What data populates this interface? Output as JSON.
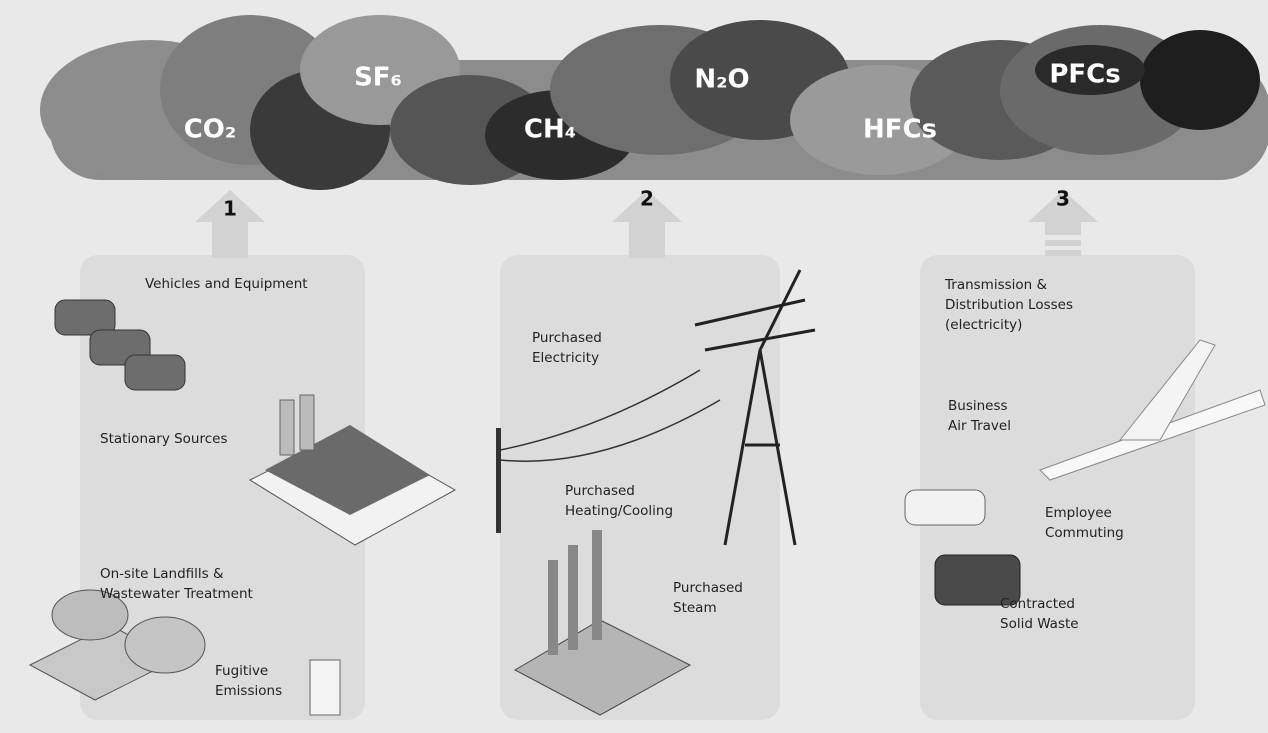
{
  "gases": [
    "CO₂",
    "SF₆",
    "CH₄",
    "N₂O",
    "HFCs",
    "PFCs"
  ],
  "scopes": [
    {
      "number": "1",
      "labels": [
        [
          "Vehicles and Equipment"
        ],
        [
          "Stationary Sources"
        ],
        [
          "On-site Landfills &",
          "Wastewater Treatment"
        ],
        [
          "Fugitive",
          "Emissions"
        ]
      ]
    },
    {
      "number": "2",
      "labels": [
        [
          "Purchased",
          "Electricity"
        ],
        [
          "Purchased",
          "Heating/Cooling"
        ],
        [
          "Purchased",
          "Steam"
        ]
      ]
    },
    {
      "number": "3",
      "labels": [
        [
          "Transmission &",
          "Distribution Losses",
          "(electricity)"
        ],
        [
          "Business",
          "Air Travel"
        ],
        [
          "Employee",
          "Commuting"
        ],
        [
          "Contracted",
          "Solid Waste"
        ]
      ]
    }
  ]
}
